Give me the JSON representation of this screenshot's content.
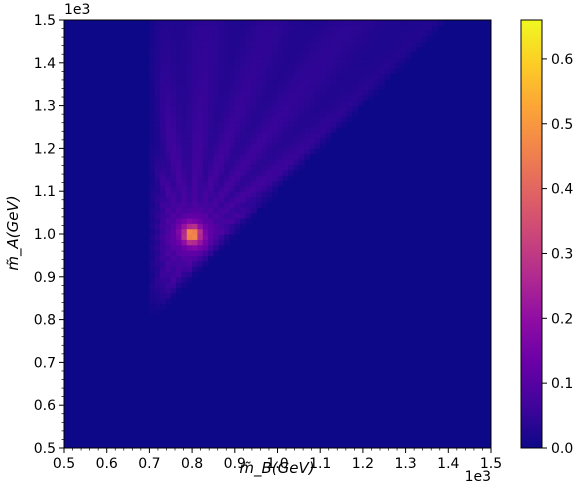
{
  "chart_data": {
    "type": "heatmap",
    "title": "",
    "xlabel": "m̃_B(GeV)",
    "ylabel": "m̃_A(GeV)",
    "x_offset_label": "1e3",
    "y_offset_label": "1e3",
    "xlim": [
      0.5,
      1.5
    ],
    "ylim": [
      0.5,
      1.5
    ],
    "x_ticks": [
      "0.5",
      "0.6",
      "0.7",
      "0.8",
      "0.9",
      "1.0",
      "1.1",
      "1.2",
      "1.3",
      "1.4",
      "1.5"
    ],
    "y_ticks": [
      "0.5",
      "0.6",
      "0.7",
      "0.8",
      "0.9",
      "1.0",
      "1.1",
      "1.2",
      "1.3",
      "1.4",
      "1.5"
    ],
    "colormap": "plasma",
    "colorbar": {
      "range": [
        0.0,
        0.66
      ],
      "ticks": [
        "0.0",
        "0.1",
        "0.2",
        "0.3",
        "0.4",
        "0.5",
        "0.6"
      ]
    },
    "peak": {
      "x": 0.8,
      "y": 1.0,
      "value": 0.66
    },
    "nonzero_region": "m_B >= 0.7e3 and m_A >= m_B + 0.1e3 (wedge opening toward upper right)",
    "grid": false,
    "legend": "none"
  }
}
